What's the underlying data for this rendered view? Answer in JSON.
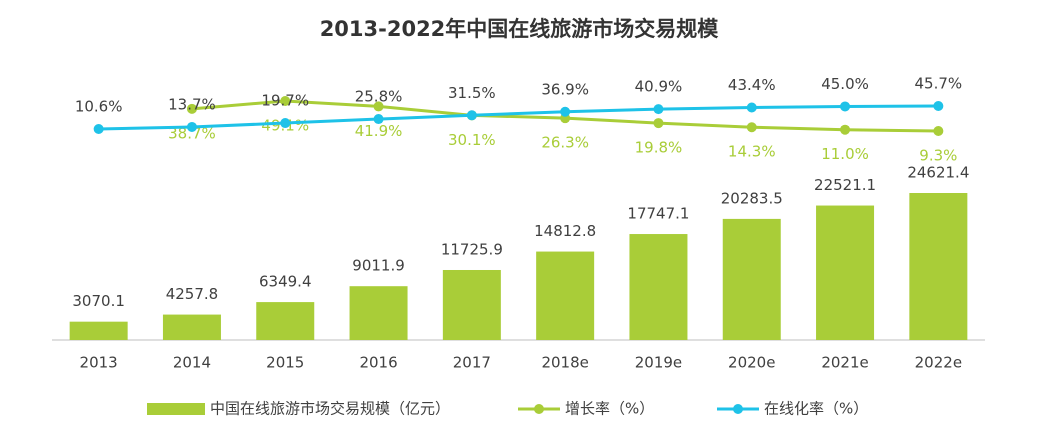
{
  "chart_data": {
    "type": "combo",
    "title": "2013-2022年中国在线旅游市场交易规模",
    "categories": [
      "2013",
      "2014",
      "2015",
      "2016",
      "2017",
      "2018e",
      "2019e",
      "2020e",
      "2021e",
      "2022e"
    ],
    "series": [
      {
        "name": "中国在线旅游市场交易规模（亿元）",
        "type": "bar",
        "color": "#a9cd38",
        "values": [
          3070.1,
          4257.8,
          6349.4,
          9011.9,
          11725.9,
          14812.8,
          17747.1,
          20283.5,
          22521.1,
          24621.4
        ]
      },
      {
        "name": "增长率（%）",
        "type": "line",
        "color": "#a9cd38",
        "label_side": "below",
        "values": [
          null,
          38.7,
          49.1,
          41.9,
          30.1,
          26.3,
          19.8,
          14.3,
          11.0,
          9.3
        ],
        "value_labels": [
          null,
          "38.7%",
          "49.1%",
          "41.9%",
          "30.1%",
          "26.3%",
          "19.8%",
          "14.3%",
          "11.0%",
          "9.3%"
        ]
      },
      {
        "name": "在线化率（%）",
        "type": "line",
        "color": "#1ec2e8",
        "label_side": "above",
        "values": [
          10.6,
          13.7,
          19.7,
          25.8,
          31.5,
          36.9,
          40.9,
          43.4,
          45.0,
          45.7
        ],
        "value_labels": [
          "10.6%",
          "13.7%",
          "19.7%",
          "25.8%",
          "31.5%",
          "36.9%",
          "40.9%",
          "43.4%",
          "45.0%",
          "45.7%"
        ]
      }
    ]
  }
}
